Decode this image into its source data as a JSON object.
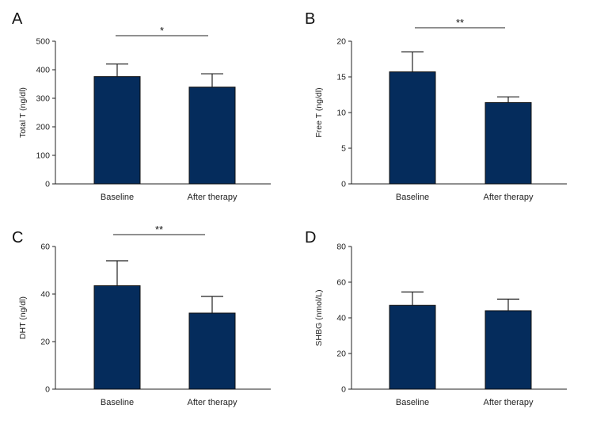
{
  "chart_data": [
    {
      "panel": "A",
      "type": "bar",
      "ylabel": "Total T (ng/dl)",
      "ylim": [
        0,
        500
      ],
      "yticks": [
        0,
        100,
        200,
        300,
        400,
        500
      ],
      "categories": [
        "Baseline",
        "After therapy"
      ],
      "values": [
        376,
        339
      ],
      "errors": [
        44,
        47
      ],
      "bar_color": "#052c5c",
      "significance": "*"
    },
    {
      "panel": "B",
      "type": "bar",
      "ylabel": "Free T (ng/dl)",
      "ylim": [
        0,
        20
      ],
      "yticks": [
        0,
        5,
        10,
        15,
        20
      ],
      "categories": [
        "Baseline",
        "After therapy"
      ],
      "values": [
        15.7,
        11.4
      ],
      "errors": [
        2.8,
        0.8
      ],
      "bar_color": "#052c5c",
      "significance": "**"
    },
    {
      "panel": "C",
      "type": "bar",
      "ylabel": "DHT (ng/dl)",
      "ylim": [
        0,
        60
      ],
      "yticks": [
        0,
        20,
        40,
        60
      ],
      "categories": [
        "Baseline",
        "After therapy"
      ],
      "values": [
        43.5,
        32
      ],
      "errors": [
        10.5,
        7
      ],
      "bar_color": "#052c5c",
      "significance": "**"
    },
    {
      "panel": "D",
      "type": "bar",
      "ylabel": "SHBG (nmol/L)",
      "ylim": [
        0,
        80
      ],
      "yticks": [
        0,
        20,
        40,
        60,
        80
      ],
      "categories": [
        "Baseline",
        "After therapy"
      ],
      "values": [
        47,
        44
      ],
      "errors": [
        7.5,
        6.5
      ],
      "bar_color": "#052c5c",
      "significance": ""
    }
  ]
}
